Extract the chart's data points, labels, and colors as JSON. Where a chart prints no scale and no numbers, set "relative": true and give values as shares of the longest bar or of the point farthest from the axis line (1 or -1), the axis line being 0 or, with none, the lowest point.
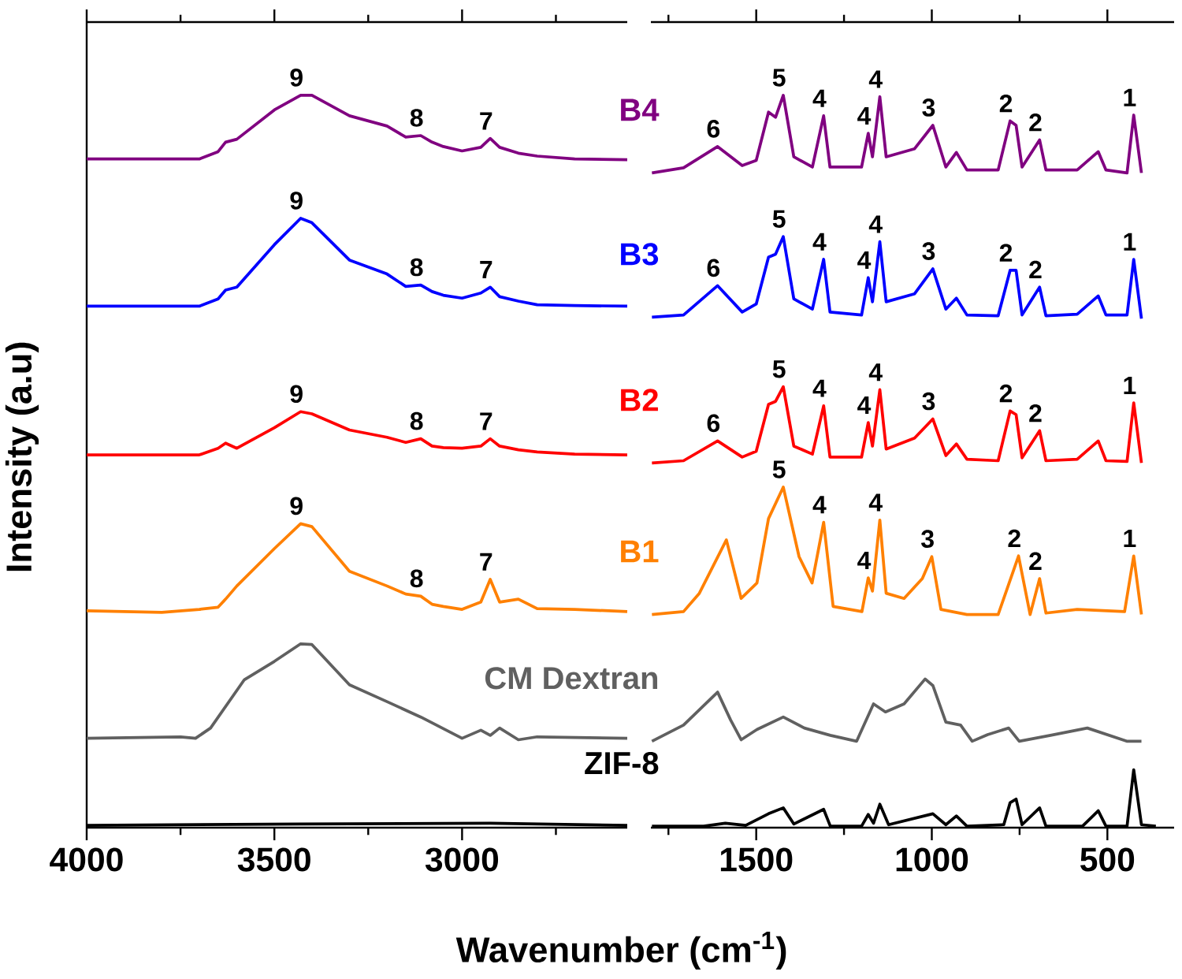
{
  "chart_data": [
    {
      "type": "line",
      "relative": true,
      "xlabel": "Wavenumber (cm$^{-1}$)",
      "ylabel": "Intensity (a.u)",
      "xlim": [
        4000,
        2560
      ],
      "xticks": [
        4000,
        3500,
        3000,
        {
          "value": 3750,
          "label": null
        },
        {
          "value": 3250,
          "label": null
        },
        {
          "value": 2750,
          "label": null
        }
      ],
      "tick_labels": "x",
      "x": [
        4000,
        3700,
        3650,
        3630,
        3600,
        3500,
        3430,
        3400,
        3300,
        3200,
        3150,
        3110,
        3080,
        3050,
        3000,
        2950,
        2925,
        2900,
        2850,
        2800,
        2700,
        2560
      ],
      "series": [
        {
          "color": "#800080",
          "values": [
            0.913,
            0.913,
            0.923,
            0.936,
            0.94,
            0.98,
            1.0,
            1.0,
            0.972,
            0.958,
            0.943,
            0.945,
            0.936,
            0.93,
            0.924,
            0.929,
            0.941,
            0.929,
            0.921,
            0.917,
            0.913,
            0.912
          ]
        },
        {
          "color": "#0000ff",
          "values": [
            0.712,
            0.712,
            0.722,
            0.734,
            0.738,
            0.796,
            0.832,
            0.826,
            0.775,
            0.756,
            0.739,
            0.741,
            0.732,
            0.727,
            0.723,
            0.73,
            0.738,
            0.725,
            0.719,
            0.714,
            0.713,
            0.712
          ]
        },
        {
          "color": "#ff0000",
          "values": [
            0.509,
            0.509,
            0.518,
            0.525,
            0.518,
            0.546,
            0.568,
            0.565,
            0.543,
            0.533,
            0.526,
            0.531,
            0.521,
            0.519,
            0.518,
            0.521,
            0.531,
            0.521,
            0.516,
            0.513,
            0.51,
            0.509
          ]
        },
        {
          "color": "#ff8000",
          "x": [
            4000,
            3800,
            3700,
            3650,
            3630,
            3600,
            3500,
            3430,
            3400,
            3300,
            3200,
            3150,
            3110,
            3080,
            3050,
            3000,
            2950,
            2925,
            2900,
            2850,
            2800,
            2700,
            2560
          ],
          "values": [
            0.296,
            0.294,
            0.298,
            0.301,
            0.312,
            0.33,
            0.381,
            0.415,
            0.411,
            0.35,
            0.33,
            0.319,
            0.316,
            0.305,
            0.302,
            0.298,
            0.308,
            0.339,
            0.308,
            0.312,
            0.299,
            0.298,
            0.295
          ]
        },
        {
          "color": "#606060",
          "x": [
            4000,
            3750,
            3710,
            3670,
            3580,
            3500,
            3430,
            3400,
            3300,
            3200,
            3110,
            3000,
            2950,
            2925,
            2900,
            2850,
            2800,
            2560
          ],
          "values": [
            0.122,
            0.124,
            0.122,
            0.136,
            0.202,
            0.227,
            0.251,
            0.25,
            0.195,
            0.172,
            0.151,
            0.122,
            0.133,
            0.126,
            0.136,
            0.12,
            0.124,
            0.122
          ]
        },
        {
          "color": "#000000",
          "x": [
            4000,
            3430,
            2925,
            2560
          ],
          "values": [
            0.003,
            0.005,
            0.006,
            0.003
          ]
        }
      ],
      "annotations": [
        {
          "text": "9",
          "x": 3430,
          "y": 1.0
        },
        {
          "text": "8",
          "x": 3110,
          "y": 0.945
        },
        {
          "text": "7",
          "x": 2925,
          "y": 0.941
        },
        {
          "text": "9",
          "x": 3430,
          "y": 0.832
        },
        {
          "text": "8",
          "x": 3110,
          "y": 0.741
        },
        {
          "text": "7",
          "x": 2925,
          "y": 0.738
        },
        {
          "text": "9",
          "x": 3430,
          "y": 0.568
        },
        {
          "text": "8",
          "x": 3110,
          "y": 0.531
        },
        {
          "text": "7",
          "x": 2925,
          "y": 0.531
        },
        {
          "text": "9",
          "x": 3430,
          "y": 0.415
        },
        {
          "text": "8",
          "x": 3110,
          "y": 0.316
        },
        {
          "text": "7",
          "x": 2925,
          "y": 0.339
        }
      ]
    },
    {
      "type": "line",
      "relative": true,
      "xlim": [
        1800,
        310
      ],
      "xticks": [
        1500,
        1000,
        500,
        {
          "value": 1750,
          "label": null
        },
        {
          "value": 1250,
          "label": null
        },
        {
          "value": 750,
          "label": null
        }
      ],
      "tick_labels": "x",
      "x": [
        1797,
        1707,
        1610,
        1540,
        1500,
        1465,
        1445,
        1423,
        1393,
        1340,
        1308,
        1290,
        1200,
        1181,
        1169,
        1148,
        1130,
        1049,
        997,
        960,
        930,
        900,
        811,
        777,
        760,
        743,
        693,
        675,
        586,
        526,
        504,
        444,
        425,
        403
      ],
      "series": [
        {
          "name": "B4",
          "color": "#800080",
          "values": [
            0.894,
            0.901,
            0.93,
            0.904,
            0.911,
            0.977,
            0.97,
            1.0,
            0.916,
            0.902,
            0.972,
            0.902,
            0.902,
            0.948,
            0.916,
            0.998,
            0.916,
            0.927,
            0.959,
            0.902,
            0.922,
            0.898,
            0.898,
            0.965,
            0.959,
            0.902,
            0.939,
            0.898,
            0.898,
            0.923,
            0.898,
            0.894,
            0.973,
            0.894
          ]
        },
        {
          "name": "B3",
          "color": "#0000ff",
          "values": [
            0.697,
            0.7,
            0.74,
            0.704,
            0.715,
            0.779,
            0.783,
            0.807,
            0.722,
            0.708,
            0.776,
            0.704,
            0.7,
            0.751,
            0.718,
            0.8,
            0.718,
            0.729,
            0.763,
            0.708,
            0.723,
            0.7,
            0.699,
            0.761,
            0.761,
            0.7,
            0.738,
            0.699,
            0.701,
            0.726,
            0.7,
            0.7,
            0.776,
            0.695
          ]
        },
        {
          "name": "B2",
          "color": "#ff0000",
          "values": [
            0.498,
            0.501,
            0.528,
            0.506,
            0.514,
            0.578,
            0.582,
            0.602,
            0.521,
            0.51,
            0.576,
            0.506,
            0.506,
            0.553,
            0.521,
            0.598,
            0.517,
            0.532,
            0.558,
            0.508,
            0.524,
            0.503,
            0.501,
            0.569,
            0.564,
            0.505,
            0.542,
            0.501,
            0.503,
            0.528,
            0.501,
            0.5,
            0.58,
            0.498
          ]
        },
        {
          "name": "B1",
          "color": "#ff8000",
          "x": [
            1797,
            1707,
            1662,
            1585,
            1543,
            1498,
            1465,
            1423,
            1378,
            1341,
            1308,
            1281,
            1199,
            1181,
            1169,
            1148,
            1130,
            1079,
            1027,
            1000,
            974,
            900,
            811,
            753,
            720,
            693,
            675,
            586,
            451,
            425,
            403
          ],
          "values": [
            0.291,
            0.295,
            0.32,
            0.393,
            0.313,
            0.334,
            0.422,
            0.465,
            0.37,
            0.334,
            0.417,
            0.302,
            0.295,
            0.341,
            0.323,
            0.42,
            0.32,
            0.313,
            0.34,
            0.37,
            0.298,
            0.291,
            0.291,
            0.371,
            0.291,
            0.34,
            0.293,
            0.298,
            0.295,
            0.371,
            0.291
          ]
        },
        {
          "name": "CM Dextran",
          "color": "#606060",
          "x": [
            1797,
            1707,
            1610,
            1573,
            1543,
            1498,
            1423,
            1363,
            1289,
            1214,
            1166,
            1132,
            1079,
            1019,
            997,
            960,
            918,
            885,
            841,
            781,
            751,
            662,
            557,
            445,
            403
          ],
          "values": [
            0.118,
            0.14,
            0.185,
            0.147,
            0.12,
            0.134,
            0.151,
            0.136,
            0.126,
            0.118,
            0.169,
            0.158,
            0.169,
            0.203,
            0.194,
            0.144,
            0.14,
            0.118,
            0.127,
            0.136,
            0.118,
            0.126,
            0.136,
            0.118,
            0.118
          ]
        },
        {
          "name": "ZIF-8",
          "color": "#000000",
          "x": [
            1797,
            1650,
            1588,
            1530,
            1465,
            1423,
            1393,
            1308,
            1289,
            1200,
            1181,
            1166,
            1148,
            1123,
            997,
            960,
            930,
            900,
            795,
            777,
            760,
            743,
            693,
            675,
            571,
            526,
            504,
            444,
            425,
            403,
            362
          ],
          "values": [
            0.002,
            0.002,
            0.006,
            0.003,
            0.019,
            0.027,
            0.005,
            0.025,
            0.002,
            0.002,
            0.018,
            0.006,
            0.032,
            0.004,
            0.019,
            0.004,
            0.016,
            0.002,
            0.004,
            0.034,
            0.039,
            0.004,
            0.027,
            0.002,
            0.002,
            0.023,
            0.002,
            0.002,
            0.079,
            0.004,
            0.002
          ]
        }
      ],
      "annotations": [
        {
          "text": "6",
          "x": 1610,
          "y": 0.93
        },
        {
          "text": "5",
          "x": 1423,
          "y": 1.0
        },
        {
          "text": "4",
          "x": 1308,
          "y": 0.972
        },
        {
          "text": "4",
          "x": 1181,
          "y": 0.948
        },
        {
          "text": "4",
          "x": 1148,
          "y": 0.998
        },
        {
          "text": "3",
          "x": 997,
          "y": 0.959
        },
        {
          "text": "2",
          "x": 777,
          "y": 0.965
        },
        {
          "text": "2",
          "x": 693,
          "y": 0.939
        },
        {
          "text": "1",
          "x": 425,
          "y": 0.973
        },
        {
          "text": "6",
          "x": 1610,
          "y": 0.74
        },
        {
          "text": "5",
          "x": 1423,
          "y": 0.807
        },
        {
          "text": "4",
          "x": 1308,
          "y": 0.776
        },
        {
          "text": "4",
          "x": 1181,
          "y": 0.751
        },
        {
          "text": "4",
          "x": 1148,
          "y": 0.8
        },
        {
          "text": "3",
          "x": 997,
          "y": 0.763
        },
        {
          "text": "2",
          "x": 777,
          "y": 0.761
        },
        {
          "text": "2",
          "x": 693,
          "y": 0.738
        },
        {
          "text": "1",
          "x": 425,
          "y": 0.776
        },
        {
          "text": "6",
          "x": 1610,
          "y": 0.528
        },
        {
          "text": "5",
          "x": 1423,
          "y": 0.602
        },
        {
          "text": "4",
          "x": 1308,
          "y": 0.576
        },
        {
          "text": "4",
          "x": 1181,
          "y": 0.553
        },
        {
          "text": "4",
          "x": 1148,
          "y": 0.598
        },
        {
          "text": "3",
          "x": 997,
          "y": 0.558
        },
        {
          "text": "2",
          "x": 777,
          "y": 0.569
        },
        {
          "text": "2",
          "x": 693,
          "y": 0.542
        },
        {
          "text": "1",
          "x": 425,
          "y": 0.58
        },
        {
          "text": "5",
          "x": 1423,
          "y": 0.465
        },
        {
          "text": "4",
          "x": 1308,
          "y": 0.417
        },
        {
          "text": "4",
          "x": 1181,
          "y": 0.341
        },
        {
          "text": "4",
          "x": 1148,
          "y": 0.42
        },
        {
          "text": "3",
          "x": 1000,
          "y": 0.37
        },
        {
          "text": "2",
          "x": 753,
          "y": 0.371
        },
        {
          "text": "2",
          "x": 693,
          "y": 0.34
        },
        {
          "text": "1",
          "x": 425,
          "y": 0.371
        }
      ]
    }
  ]
}
